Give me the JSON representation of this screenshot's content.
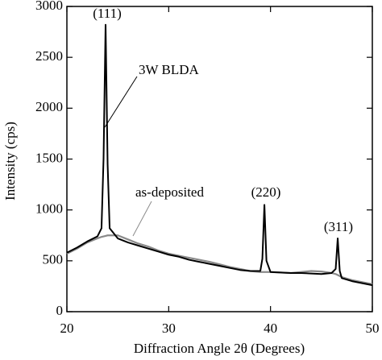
{
  "chart_data": {
    "type": "line",
    "x_label": "Diffraction Angle 2θ (Degrees)",
    "y_label": "Intensity (cps)",
    "xlim": [
      20,
      50
    ],
    "xticks": [
      20,
      30,
      40,
      50
    ],
    "ylim": [
      0,
      3000
    ],
    "yticks": [
      0,
      500,
      1000,
      1500,
      2000,
      2500,
      3000
    ],
    "x": [
      20,
      21,
      22,
      23,
      23.4,
      23.6,
      23.8,
      24,
      24.2,
      25,
      26,
      27,
      28,
      29,
      30,
      31,
      32,
      33,
      34,
      35,
      36,
      37,
      38,
      39,
      39.2,
      39.4,
      39.6,
      40,
      41,
      42,
      43,
      44,
      45,
      46,
      46.4,
      46.6,
      46.8,
      47,
      48,
      49,
      50
    ],
    "series": [
      {
        "name": "3W BLDA",
        "color": "#000000",
        "values": [
          580,
          630,
          690,
          740,
          820,
          1500,
          2820,
          1450,
          820,
          720,
          680,
          650,
          620,
          590,
          560,
          540,
          510,
          490,
          470,
          450,
          430,
          410,
          400,
          400,
          520,
          1050,
          500,
          390,
          385,
          380,
          380,
          375,
          370,
          380,
          420,
          720,
          400,
          330,
          300,
          280,
          260
        ]
      },
      {
        "name": "as-deposited",
        "color": "#8a8a8a",
        "values": [
          570,
          620,
          680,
          720,
          735,
          740,
          745,
          750,
          750,
          750,
          710,
          670,
          640,
          600,
          570,
          550,
          530,
          510,
          490,
          465,
          440,
          420,
          400,
          390,
          390,
          390,
          390,
          390,
          385,
          380,
          390,
          400,
          395,
          380,
          370,
          360,
          350,
          340,
          310,
          290,
          270
        ]
      }
    ],
    "annotations": [
      "(111)",
      "(220)",
      "(311)"
    ]
  }
}
